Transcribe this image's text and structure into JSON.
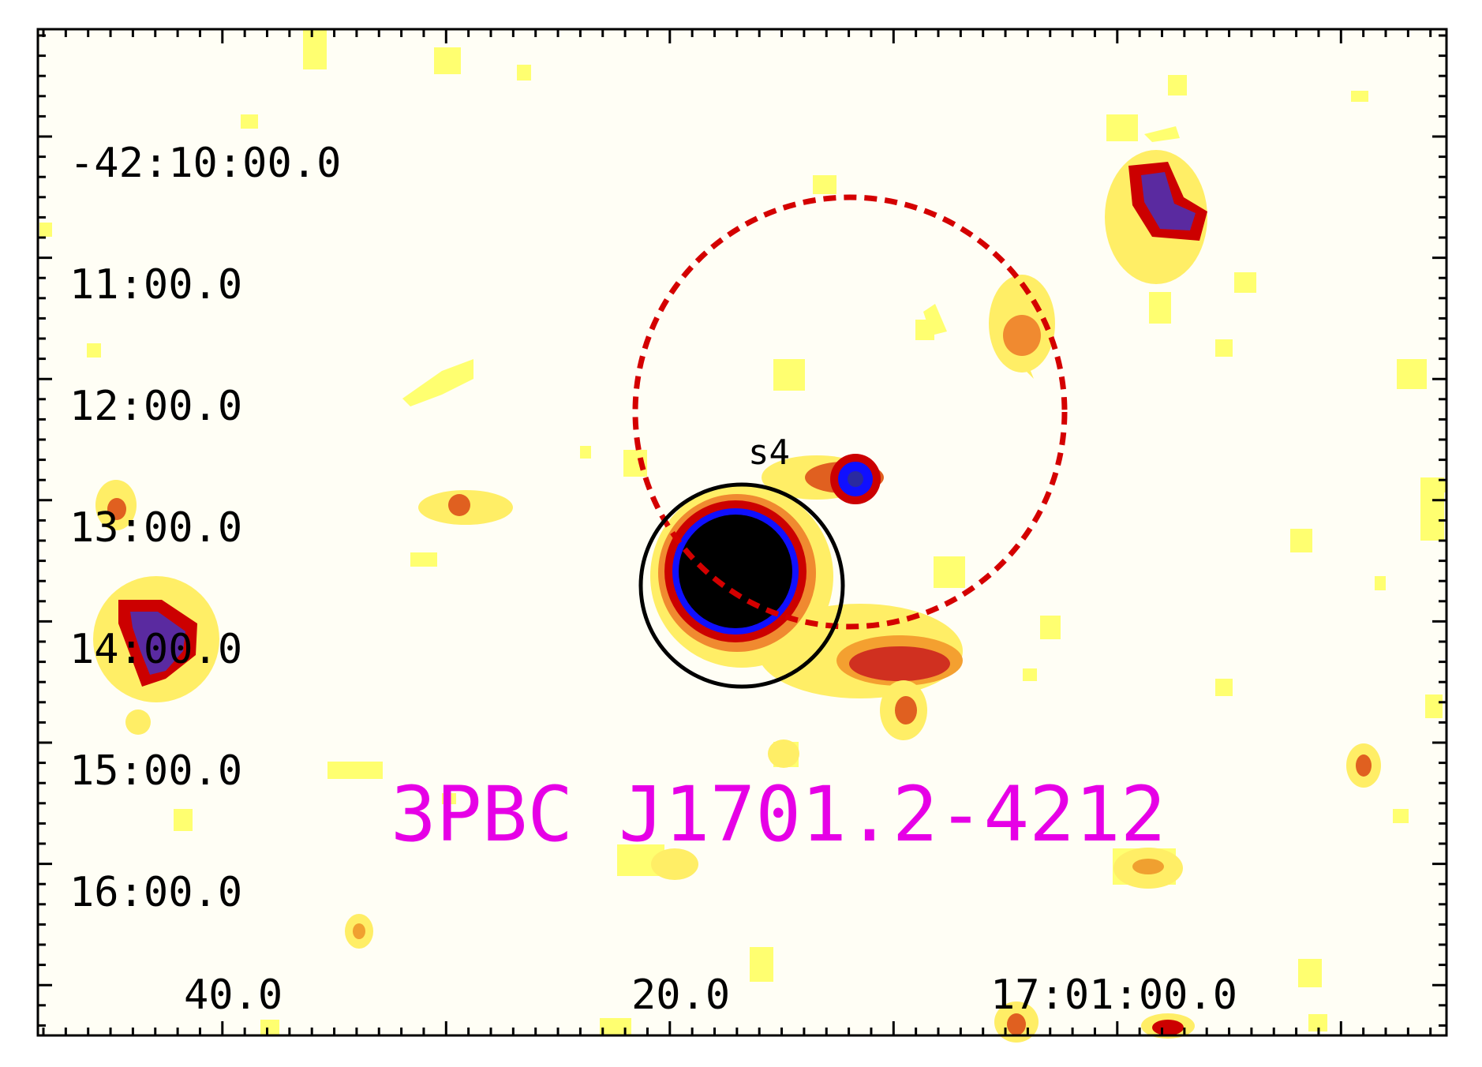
{
  "image": {
    "title": "3PBC J1701.2-4212",
    "title_color": "#e600e6",
    "source_label": "s4",
    "colormap": [
      "#fffef5",
      "#ffff66",
      "#ffcc00",
      "#e05a20",
      "#cc0000",
      "#5a2aa0",
      "#1010ff",
      "#000000"
    ]
  },
  "axes": {
    "dec_labels": [
      "-42:10:00.0",
      "11:00.0",
      "12:00.0",
      "13:00.0",
      "14:00.0",
      "15:00.0",
      "16:00.0"
    ],
    "ra_labels": [
      "40.0",
      "20.0",
      "17:01:00.0"
    ]
  },
  "regions": {
    "error_circle_color": "#d40000",
    "source_circle_color": "#000000"
  }
}
